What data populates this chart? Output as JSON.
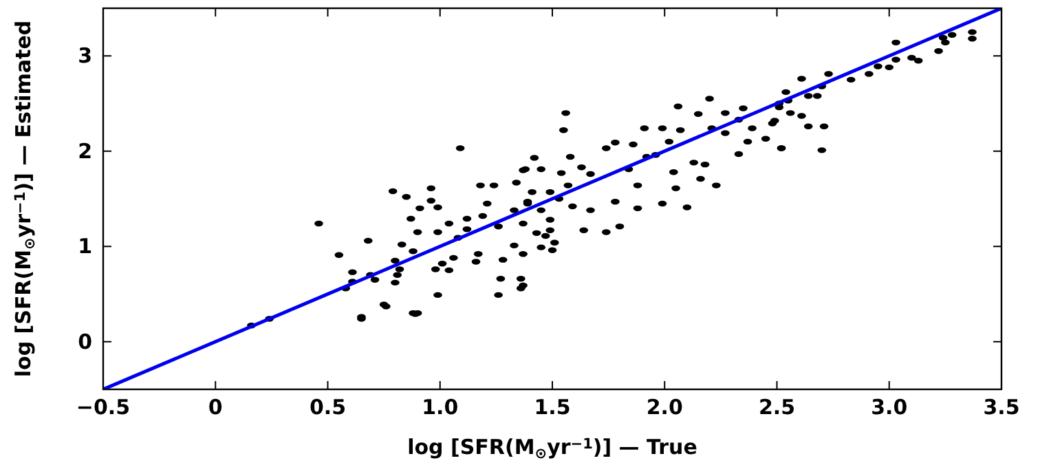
{
  "chart_data": {
    "type": "scatter",
    "xlabel": "log [SFR(M$_{⊙}$yr$^{−1}$)] — True",
    "ylabel": "log [SFR(M$_{⊙}$yr$^{−1}$)] — Estimated",
    "xlim": [
      -0.5,
      3.5
    ],
    "ylim": [
      -0.5,
      3.5
    ],
    "xticks": [
      {
        "value": -0.5,
        "label": "−0.5"
      },
      0,
      0.5,
      {
        "value": 1,
        "label": "1.0"
      },
      1.5,
      {
        "value": 2,
        "label": "2.0"
      },
      2.5,
      {
        "value": 3,
        "label": "3.0"
      },
      3.5
    ],
    "yticks": [
      0,
      1,
      2,
      3
    ],
    "grid": false,
    "marker": "circle",
    "series": [
      {
        "color": "#000000",
        "x": [
          0.16,
          0.24,
          0.46,
          0.55,
          0.58,
          0.61,
          0.65,
          0.68,
          0.69,
          0.76,
          0.8,
          0.82,
          0.83,
          0.88,
          0.89,
          0.9,
          0.79,
          0.96,
          0.85,
          0.96,
          0.91,
          0.99,
          0.87,
          1.04,
          0.9,
          0.99,
          0.61,
          0.8,
          0.81,
          0.71,
          0.75,
          0.65,
          0.88,
          0.99,
          1.04,
          0.98,
          1.01,
          1.06,
          1.17,
          1.16,
          1.28,
          1.27,
          1.36,
          1.36,
          1.26,
          1.37,
          1.5,
          1.51,
          1.37,
          1.45,
          1.54,
          1.18,
          1.24,
          1.21,
          1.19,
          1.12,
          1.08,
          1.12,
          1.26,
          1.33,
          1.39,
          1.45,
          1.49,
          1.34,
          1.41,
          1.53,
          1.59,
          1.37,
          1.33,
          1.43,
          1.47,
          1.09,
          1.56,
          1.55,
          1.42,
          1.38,
          1.58,
          1.63,
          1.74,
          1.78,
          1.91,
          1.86,
          1.99,
          2.06,
          2.15,
          2.2,
          2.27,
          2.33,
          2.35,
          2.54,
          2.51,
          2.48,
          2.52,
          2.45,
          2.33,
          2.37,
          2.23,
          2.18,
          2.16,
          2.1,
          2.05,
          1.99,
          1.88,
          1.8,
          1.74,
          1.64,
          1.45,
          1.49,
          1.67,
          1.78,
          1.88,
          2.04,
          2.13,
          1.96,
          2.02,
          2.07,
          2.21,
          1.67,
          1.57,
          1.49,
          1.39,
          1.84,
          1.92,
          2.27,
          2.39,
          1.37,
          2.51,
          2.55,
          2.49,
          2.56,
          2.61,
          2.64,
          2.71,
          2.61,
          2.73,
          2.7,
          2.64,
          2.68,
          2.52,
          2.7,
          2.83,
          2.91,
          2.95,
          3.0,
          3.03,
          3.03,
          3.1,
          3.13,
          3.22,
          3.24,
          3.25,
          3.28,
          3.37,
          3.37
        ],
        "values": [
          0.17,
          0.24,
          1.24,
          0.91,
          0.56,
          0.63,
          0.26,
          1.06,
          0.7,
          0.37,
          0.85,
          0.76,
          1.02,
          0.95,
          0.29,
          0.3,
          1.58,
          1.61,
          1.52,
          1.48,
          1.4,
          1.41,
          1.29,
          1.24,
          1.15,
          1.15,
          0.73,
          0.62,
          0.7,
          0.65,
          0.39,
          0.24,
          0.3,
          0.49,
          0.75,
          0.76,
          0.82,
          0.88,
          0.92,
          0.84,
          0.86,
          0.66,
          0.56,
          0.66,
          0.49,
          0.92,
          0.96,
          1.04,
          1.8,
          1.81,
          1.77,
          1.64,
          1.64,
          1.45,
          1.32,
          1.29,
          1.09,
          1.18,
          1.21,
          1.38,
          1.45,
          1.38,
          1.28,
          1.67,
          1.57,
          1.5,
          1.42,
          1.24,
          1.01,
          1.14,
          1.11,
          2.03,
          2.4,
          2.22,
          1.93,
          1.81,
          1.94,
          1.83,
          2.03,
          2.09,
          2.24,
          2.07,
          2.24,
          2.47,
          2.39,
          2.55,
          2.4,
          2.33,
          2.45,
          2.62,
          2.5,
          2.29,
          2.03,
          2.13,
          1.97,
          2.1,
          1.64,
          1.86,
          1.71,
          1.41,
          1.61,
          1.45,
          1.4,
          1.21,
          1.15,
          1.17,
          0.99,
          1.17,
          1.38,
          1.47,
          1.64,
          1.78,
          1.88,
          1.96,
          2.1,
          2.22,
          2.24,
          1.76,
          1.64,
          1.57,
          1.47,
          1.81,
          1.94,
          2.19,
          2.24,
          0.59,
          2.46,
          2.53,
          2.32,
          2.4,
          2.37,
          2.26,
          2.26,
          2.76,
          2.81,
          2.68,
          2.58,
          2.58,
          2.03,
          2.01,
          2.75,
          2.81,
          2.89,
          2.88,
          3.14,
          2.96,
          2.98,
          2.95,
          3.05,
          3.19,
          3.14,
          3.22,
          3.25,
          3.18
        ]
      },
      {
        "type": "line",
        "color": "#0000ee",
        "x": [
          -0.5,
          3.5
        ],
        "values": [
          -0.5,
          3.5
        ],
        "marker": "none",
        "line_style": "solid"
      }
    ]
  }
}
